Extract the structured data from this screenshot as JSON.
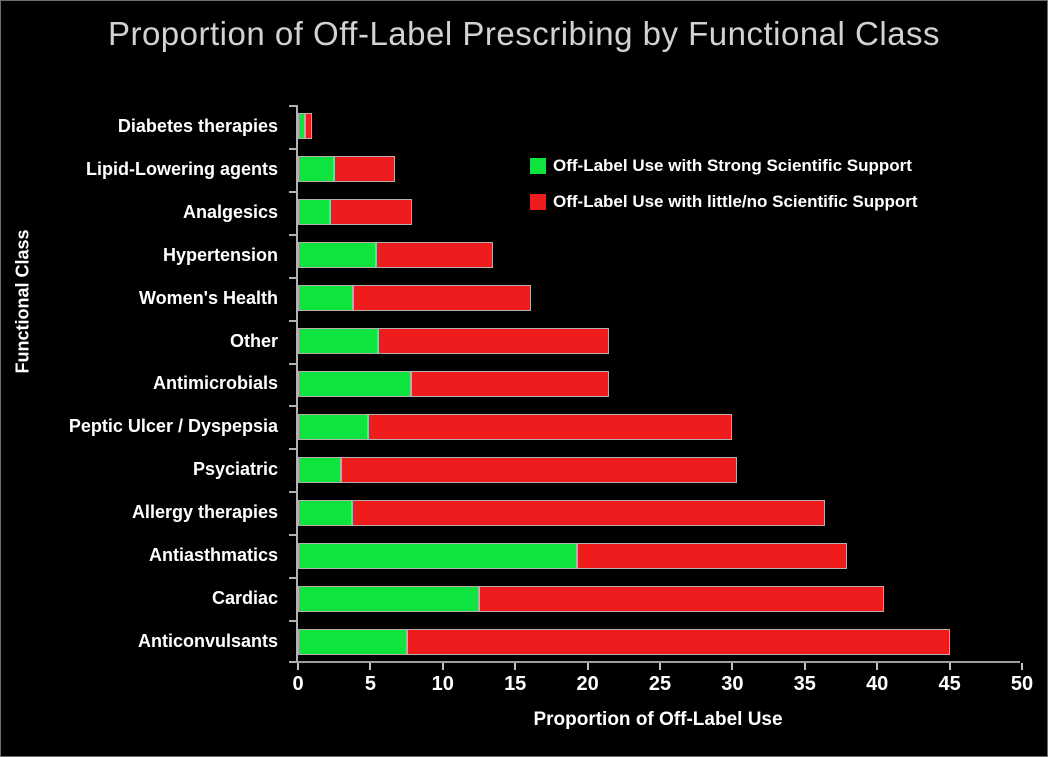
{
  "window": {
    "background_color": "#000000",
    "border_color": "#6e6e6e",
    "title_color": "#d2d2d2",
    "text_color": "#ffffff"
  },
  "chart_data": {
    "type": "bar",
    "orientation": "horizontal",
    "stacked": true,
    "grid": false,
    "title": "Proportion of Off-Label Prescribing by Functional Class",
    "xlabel": "Proportion of Off-Label Use",
    "ylabel": "Functional Class",
    "xlim": [
      0,
      50
    ],
    "x_ticks": [
      0,
      5,
      10,
      15,
      20,
      25,
      30,
      35,
      40,
      45,
      50
    ],
    "legend_position": "upper-right-inside",
    "categories": [
      "Diabetes therapies",
      "Lipid-Lowering agents",
      "Analgesics",
      "Hypertension",
      "Women's Health",
      "Other",
      "Antimicrobials",
      "Peptic Ulcer / Dyspepsia",
      "Psyciatric",
      "Allergy therapies",
      "Antiasthmatics",
      "Cardiac",
      "Anticonvulsants"
    ],
    "series": [
      {
        "name": "Off-Label Use with Strong Scientific Support",
        "color": "#0ee33e",
        "values": [
          0.5,
          2.5,
          2.2,
          5.4,
          3.8,
          5.5,
          7.8,
          4.8,
          3.0,
          3.7,
          19.3,
          12.5,
          7.5
        ]
      },
      {
        "name": "Off-Label Use with little/no Scientific Support",
        "color": "#ee1c1c",
        "values": [
          0.5,
          4.2,
          5.7,
          8.1,
          12.3,
          16.0,
          13.7,
          25.2,
          27.3,
          32.7,
          18.6,
          28.0,
          37.5
        ]
      }
    ],
    "totals": [
      1.0,
      6.7,
      7.9,
      13.5,
      16.1,
      21.5,
      21.5,
      30.0,
      30.3,
      36.4,
      37.9,
      40.5,
      45.0
    ]
  }
}
